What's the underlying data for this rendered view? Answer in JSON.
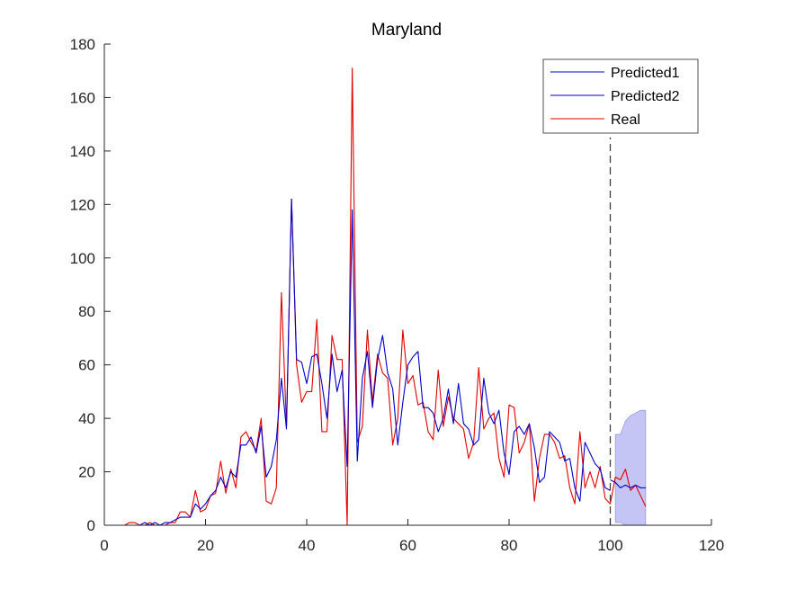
{
  "chart_data": {
    "type": "line",
    "title": "Maryland",
    "xlabel": "",
    "ylabel": "",
    "xlim": [
      0,
      120
    ],
    "ylim": [
      0,
      180
    ],
    "xticks": [
      0,
      20,
      40,
      60,
      80,
      100,
      120
    ],
    "yticks": [
      0,
      20,
      40,
      60,
      80,
      100,
      120,
      140,
      160,
      180
    ],
    "grid": false,
    "legend": {
      "position": "top-right",
      "entries": [
        "Predicted1",
        "Predicted2",
        "Real"
      ]
    },
    "forecast_start_x": 100,
    "colors": {
      "predicted": "#0000cc",
      "real": "#e00000",
      "band": "#c4c4f5",
      "band_edge": "#8888dd",
      "divider": "#404040"
    },
    "series": [
      {
        "name": "Predicted1",
        "x": [
          1,
          2,
          3,
          4,
          5,
          6,
          7,
          8,
          9,
          10,
          11,
          12,
          13,
          14,
          15,
          16,
          17,
          18,
          19,
          20,
          21,
          22,
          23,
          24,
          25,
          26,
          27,
          28,
          29,
          30,
          31,
          32,
          33,
          34,
          35,
          36,
          37,
          38,
          39,
          40,
          41,
          42,
          43,
          44,
          45,
          46,
          47,
          48,
          49,
          50,
          51,
          52,
          53,
          54,
          55,
          56,
          57,
          58,
          59,
          60,
          61,
          62,
          63,
          64,
          65,
          66,
          67,
          68,
          69,
          70,
          71,
          72,
          73,
          74,
          75,
          76,
          77,
          78,
          79,
          80,
          81,
          82,
          83,
          84,
          85,
          86,
          87,
          88,
          89,
          90,
          91,
          92,
          93,
          94,
          95,
          96,
          97,
          98,
          99,
          100
        ],
        "y": [
          0,
          0,
          0,
          0,
          0,
          0,
          0,
          1,
          0,
          1,
          0,
          1,
          1,
          2,
          3,
          3,
          3,
          8,
          6,
          8,
          11,
          13,
          18,
          14,
          20,
          18,
          30,
          30,
          33,
          27,
          37,
          18,
          22,
          32,
          55,
          36,
          122,
          62,
          61,
          53,
          63,
          64,
          53,
          40,
          64,
          50,
          58,
          22,
          118,
          24,
          55,
          65,
          44,
          62,
          71,
          57,
          51,
          30,
          46,
          60,
          63,
          65,
          44,
          44,
          42,
          35,
          40,
          51,
          38,
          53,
          38,
          36,
          30,
          32,
          55,
          42,
          38,
          43,
          27,
          19,
          35,
          37,
          34,
          38,
          29,
          16,
          18,
          35,
          33,
          31,
          24,
          25,
          14,
          9,
          31,
          27,
          23,
          21,
          14,
          13
        ]
      },
      {
        "name": "Predicted2",
        "x": [
          100,
          101,
          102,
          103,
          104,
          105,
          106,
          107
        ],
        "y": [
          17,
          16,
          14,
          15,
          14,
          15,
          14,
          14
        ]
      },
      {
        "name": "Real",
        "x": [
          1,
          2,
          3,
          4,
          5,
          6,
          7,
          8,
          9,
          10,
          11,
          12,
          13,
          14,
          15,
          16,
          17,
          18,
          19,
          20,
          21,
          22,
          23,
          24,
          25,
          26,
          27,
          28,
          29,
          30,
          31,
          32,
          33,
          34,
          35,
          36,
          37,
          38,
          39,
          40,
          41,
          42,
          43,
          44,
          45,
          46,
          47,
          48,
          49,
          50,
          51,
          52,
          53,
          54,
          55,
          56,
          57,
          58,
          59,
          60,
          61,
          62,
          63,
          64,
          65,
          66,
          67,
          68,
          69,
          70,
          71,
          72,
          73,
          74,
          75,
          76,
          77,
          78,
          79,
          80,
          81,
          82,
          83,
          84,
          85,
          86,
          87,
          88,
          89,
          90,
          91,
          92,
          93,
          94,
          95,
          96,
          97,
          98,
          99,
          100,
          101,
          102,
          103,
          104,
          105,
          106,
          107
        ],
        "y": [
          0,
          0,
          0,
          0,
          1,
          1,
          0,
          0,
          1,
          0,
          0,
          0,
          1,
          1,
          5,
          5,
          3,
          13,
          5,
          6,
          11,
          12,
          24,
          12,
          21,
          14,
          33,
          35,
          31,
          28,
          40,
          9,
          8,
          14,
          87,
          37,
          122,
          60,
          46,
          50,
          50,
          77,
          35,
          35,
          71,
          62,
          62,
          0,
          171,
          31,
          37,
          73,
          46,
          64,
          57,
          55,
          30,
          40,
          73,
          53,
          56,
          45,
          46,
          35,
          32,
          58,
          37,
          48,
          40,
          38,
          36,
          25,
          31,
          59,
          36,
          40,
          42,
          25,
          18,
          45,
          44,
          27,
          31,
          38,
          9,
          25,
          34,
          34,
          31,
          25,
          26,
          14,
          8,
          35,
          14,
          20,
          14,
          22,
          10,
          8,
          18,
          17,
          21,
          13,
          15,
          11,
          7
        ]
      }
    ],
    "prediction_interval": {
      "x": [
        101,
        102,
        103,
        104,
        105,
        106,
        107
      ],
      "upper": [
        34,
        34,
        39,
        41,
        42,
        43,
        43
      ],
      "lower": [
        1,
        1,
        0,
        0,
        0,
        0,
        0
      ]
    }
  }
}
